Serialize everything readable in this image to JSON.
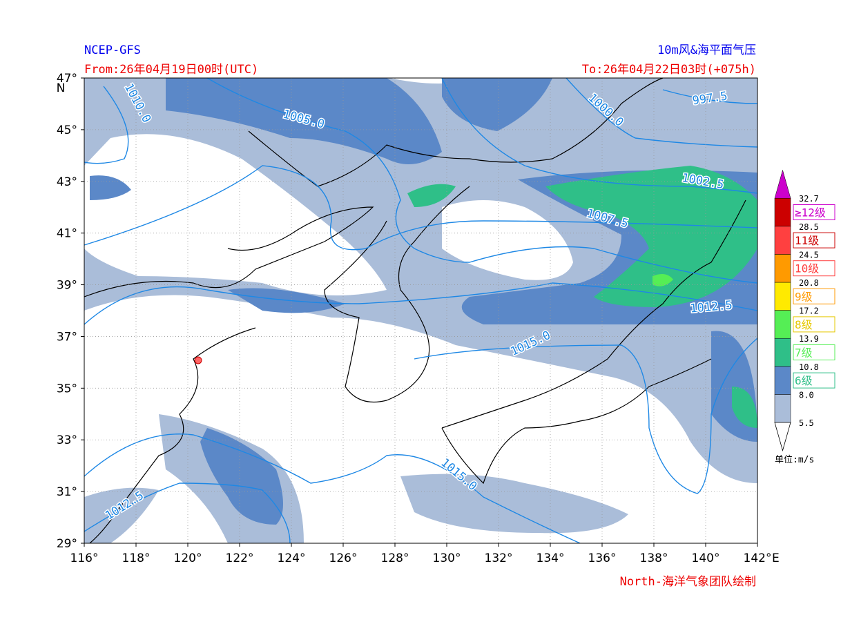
{
  "header": {
    "model": "NCEP-GFS",
    "product": "10m风&海平面气压",
    "start": "From:26年04月19日00时(UTC)",
    "end": "To:26年04月22日03时(+075h)",
    "credit": "North-海洋气象团队绘制"
  },
  "axes": {
    "xlim": [
      116,
      142
    ],
    "ylim": [
      29,
      47
    ],
    "xticks": [
      {
        "value": 116,
        "label": "116°"
      },
      {
        "value": 118,
        "label": "118°"
      },
      {
        "value": 120,
        "label": "120°"
      },
      {
        "value": 122,
        "label": "122°"
      },
      {
        "value": 124,
        "label": "124°"
      },
      {
        "value": 126,
        "label": "126°"
      },
      {
        "value": 128,
        "label": "128°"
      },
      {
        "value": 130,
        "label": "130°"
      },
      {
        "value": 132,
        "label": "132°"
      },
      {
        "value": 134,
        "label": "134°"
      },
      {
        "value": 136,
        "label": "136°"
      },
      {
        "value": 138,
        "label": "138°"
      },
      {
        "value": 140,
        "label": "140°"
      },
      {
        "value": 142,
        "label": "142°"
      }
    ],
    "yticks": [
      {
        "value": 29,
        "label": "29°"
      },
      {
        "value": 31,
        "label": "31°"
      },
      {
        "value": 33,
        "label": "33°"
      },
      {
        "value": 35,
        "label": "35°"
      },
      {
        "value": 37,
        "label": "37°"
      },
      {
        "value": 39,
        "label": "39°"
      },
      {
        "value": 41,
        "label": "41°"
      },
      {
        "value": 43,
        "label": "43°"
      },
      {
        "value": 45,
        "label": "45°"
      },
      {
        "value": 47,
        "label": "47°"
      }
    ],
    "x_unit": "E",
    "y_unit": "N",
    "grid": true
  },
  "colorbar": {
    "levels": [
      5.5,
      {
        "value": 8,
        "label": "8.0"
      },
      10.8,
      13.9,
      17.2,
      20.8,
      24.5,
      28.5,
      32.7
    ],
    "colors": [
      "#aabdd9",
      "#5b88c8",
      "#2fbf88",
      "#55ee55",
      "#ffea00",
      "#ff9a00",
      "#ff4040",
      "#cc0000",
      "#cc00cc"
    ],
    "grades": [
      "6级",
      "7级",
      "8级",
      "9级",
      "10级",
      "11级",
      "≥12级"
    ],
    "unit": "单位:m/s"
  },
  "isobars": {
    "color": "#1e88e5",
    "labels": [
      "1010.0",
      "1005.0",
      "1000.0",
      "997.5",
      "1002.5",
      "1007.5",
      "1012.5",
      "1015.0",
      "1015.0",
      "1012.5"
    ]
  }
}
